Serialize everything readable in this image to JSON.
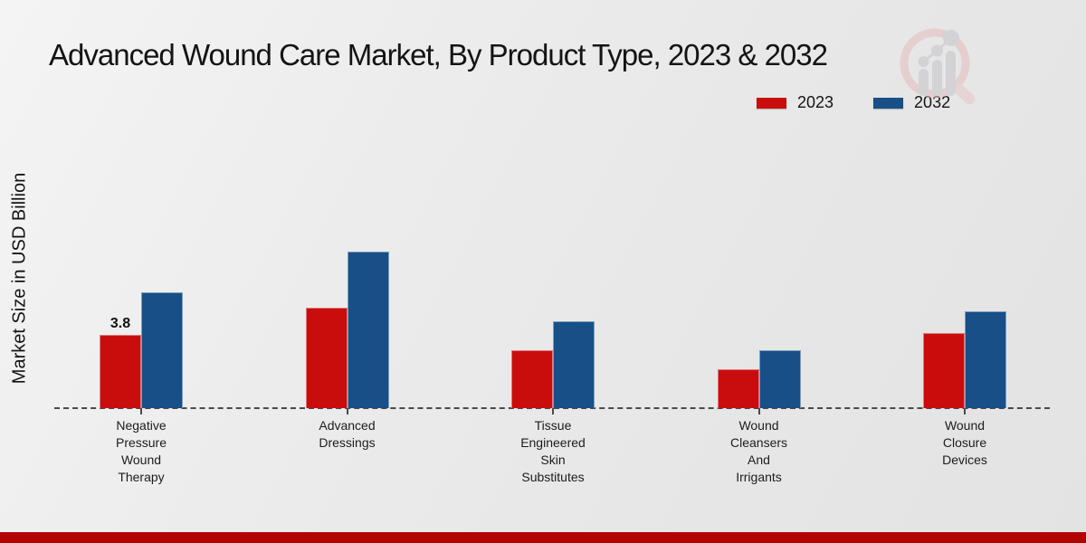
{
  "title": "Advanced Wound Care Market, By Product Type, 2023 & 2032",
  "colors": {
    "accent_red": "#c90d0d",
    "accent_blue": "#174f86",
    "footer_bar": "#b20400",
    "baseline": "#4a4a4a"
  },
  "logo": {
    "name": "market-research-magnifier-logo"
  },
  "chart_data": {
    "type": "bar",
    "title": "Advanced Wound Care Market, By Product Type, 2023 & 2032",
    "xlabel": "",
    "ylabel": "Market Size in USD Billion",
    "ylim": [
      0,
      9
    ],
    "grid": false,
    "legend_position": "top-right",
    "categories": [
      [
        "Negative",
        "Pressure",
        "Wound",
        "Therapy"
      ],
      [
        "Advanced",
        "Dressings"
      ],
      [
        "Tissue",
        "Engineered",
        "Skin",
        "Substitutes"
      ],
      [
        "Wound",
        "Cleansers",
        "And",
        "Irrigants"
      ],
      [
        "Wound",
        "Closure",
        "Devices"
      ]
    ],
    "series": [
      {
        "name": "2023",
        "color": "#c90d0d",
        "values": [
          3.8,
          5.2,
          3.0,
          2.0,
          3.9
        ]
      },
      {
        "name": "2032",
        "color": "#174f86",
        "values": [
          6.0,
          8.1,
          4.5,
          3.0,
          5.0
        ]
      }
    ],
    "data_labels": [
      {
        "series_index": 0,
        "category_index": 0,
        "text": "3.8"
      }
    ]
  }
}
